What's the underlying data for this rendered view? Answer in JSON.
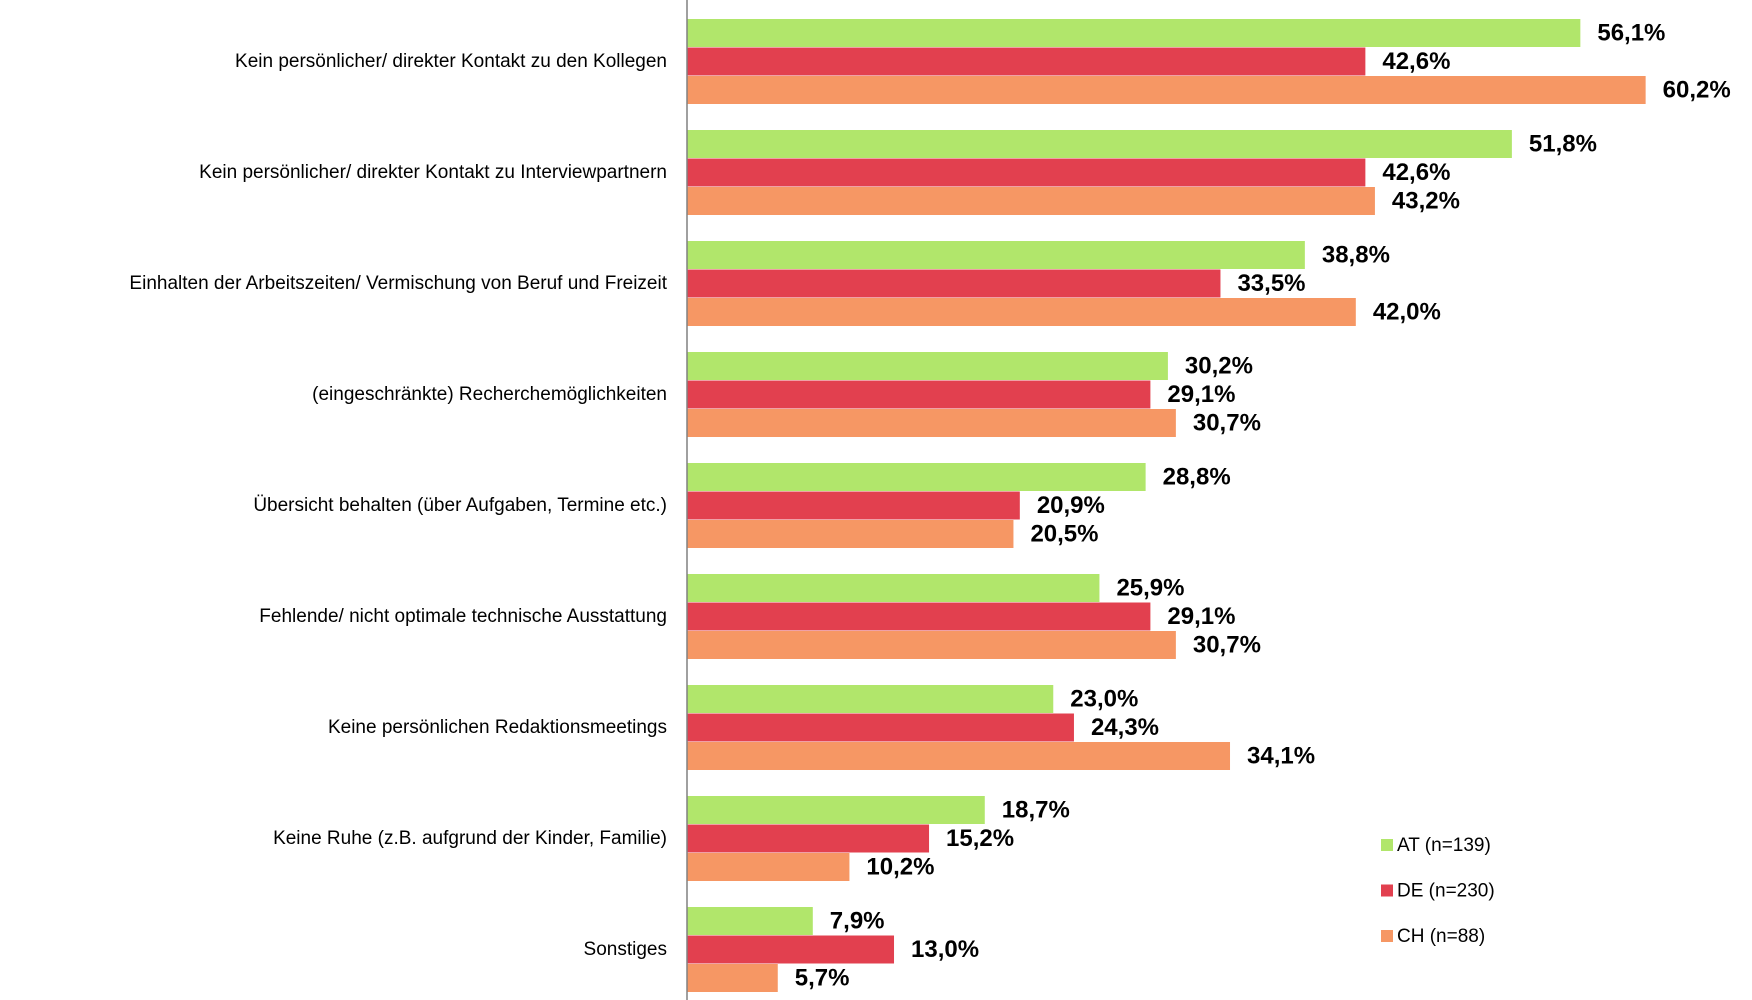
{
  "chart_data": {
    "type": "hbar",
    "categories": [
      "Kein persönlicher/ direkter Kontakt zu den Kollegen",
      "Kein persönlicher/ direkter Kontakt zu Interviewpartnern",
      "Einhalten der Arbeitszeiten/ Vermischung von Beruf und Freizeit",
      "(eingeschränkte) Recherchemöglichkeiten",
      "Übersicht behalten (über Aufgaben, Termine etc.)",
      "Fehlende/ nicht optimale technische Ausstattung",
      "Keine persönlichen Redaktionsmeetings",
      "Keine Ruhe (z.B. aufgrund der Kinder, Familie)",
      "Sonstiges"
    ],
    "series": [
      {
        "name": "AT (n=139)",
        "color": "#b1e66b",
        "values": [
          56.1,
          51.8,
          38.8,
          30.2,
          28.8,
          25.9,
          23.0,
          18.7,
          7.9
        ],
        "value_labels": [
          "56,1%",
          "51,8%",
          "38,8%",
          "30,2%",
          "28,8%",
          "25,9%",
          "23,0%",
          "18,7%",
          "7,9%"
        ]
      },
      {
        "name": "DE (n=230)",
        "color": "#e2404f",
        "values": [
          42.6,
          42.6,
          33.5,
          29.1,
          20.9,
          29.1,
          24.3,
          15.2,
          13.0
        ],
        "value_labels": [
          "42,6%",
          "42,6%",
          "33,5%",
          "29,1%",
          "20,9%",
          "29,1%",
          "24,3%",
          "15,2%",
          "13,0%"
        ]
      },
      {
        "name": "CH (n=88)",
        "color": "#f69764",
        "values": [
          60.2,
          43.2,
          42.0,
          30.7,
          20.5,
          30.7,
          34.1,
          10.2,
          5.7
        ],
        "value_labels": [
          "60,2%",
          "43,2%",
          "42,0%",
          "30,7%",
          "20,5%",
          "30,7%",
          "34,1%",
          "10,2%",
          "5,7%"
        ]
      }
    ],
    "xlim": [
      0,
      66
    ]
  }
}
